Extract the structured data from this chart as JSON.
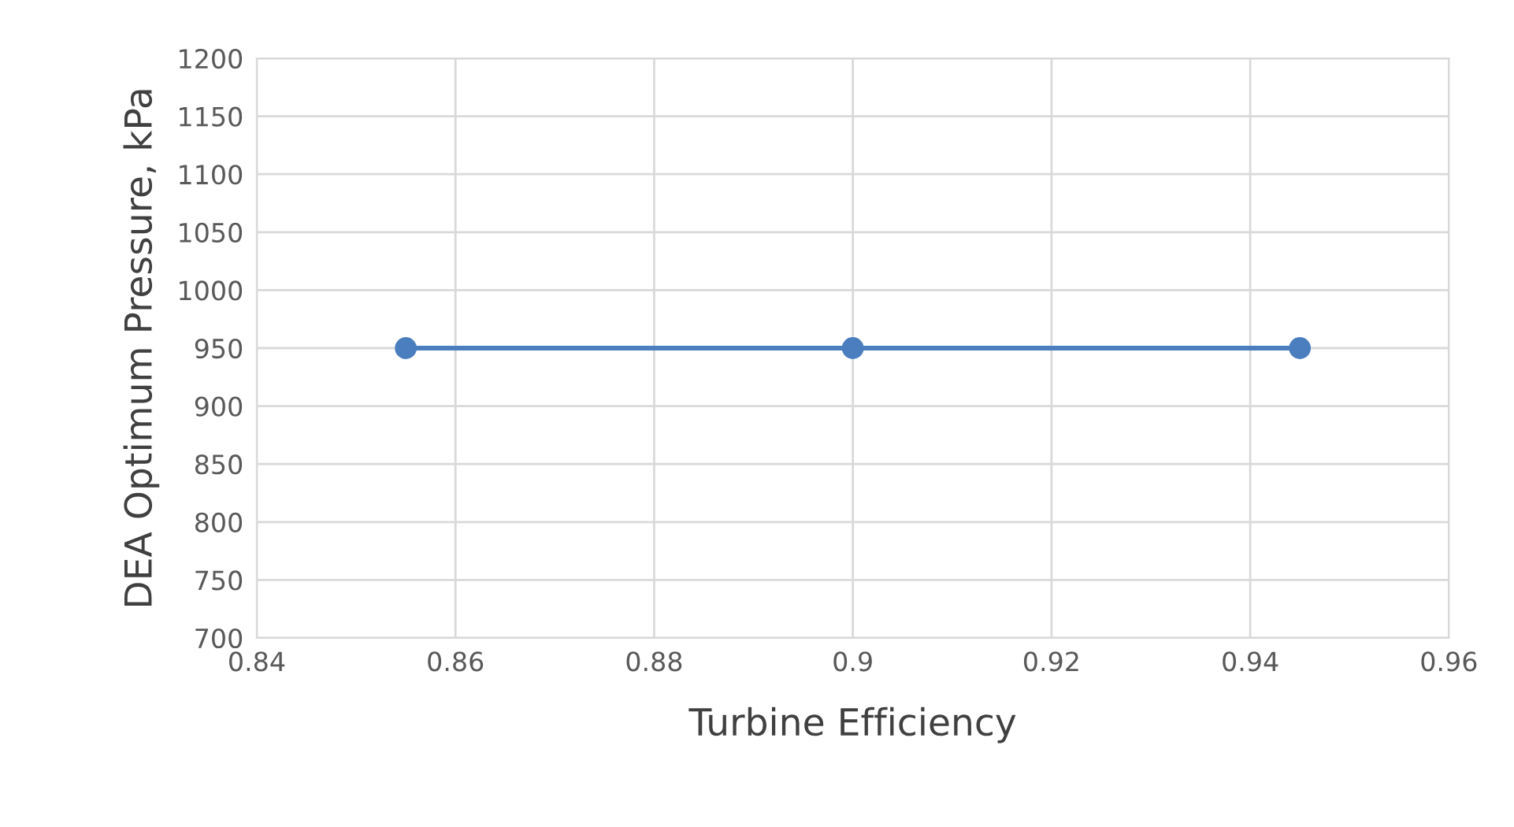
{
  "chart_data": {
    "type": "line",
    "xlabel": "Turbine Efficiency",
    "ylabel": "DEA Optimum Pressure, kPa",
    "x": [
      0.855,
      0.9,
      0.945
    ],
    "series": [
      {
        "color": "#4a7ebf",
        "values": [
          950,
          950,
          950
        ]
      }
    ],
    "xlim": [
      0.84,
      0.96
    ],
    "xticks": [
      0.84,
      0.86,
      0.88,
      0.9,
      0.92,
      0.94,
      0.96
    ],
    "ylim": [
      700,
      1200
    ],
    "yticks": [
      700,
      750,
      800,
      850,
      900,
      950,
      1000,
      1050,
      1100,
      1150,
      1200
    ],
    "grid": true,
    "marker": "circle",
    "line_style": "solid"
  }
}
